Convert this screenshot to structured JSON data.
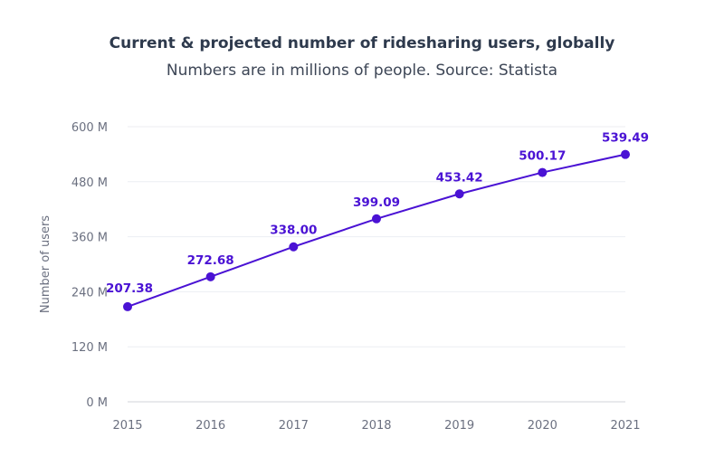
{
  "chart_data": {
    "type": "line",
    "title": "Current & projected number of ridesharing users, globally",
    "subtitle": "Numbers are in millions of people. Source: Statista",
    "xlabel": "",
    "ylabel": "Number of users",
    "x": [
      "2015",
      "2016",
      "2017",
      "2018",
      "2019",
      "2020",
      "2021"
    ],
    "values": [
      207.38,
      272.68,
      338.0,
      399.09,
      453.42,
      500.17,
      539.49
    ],
    "data_labels": [
      "207.38",
      "272.68",
      "338.00",
      "399.09",
      "453.42",
      "500.17",
      "539.49"
    ],
    "yticks": [
      0,
      120,
      240,
      360,
      480,
      600
    ],
    "ytick_labels": [
      "0 M",
      "120 M",
      "240 M",
      "360 M",
      "480 M",
      "600 M"
    ],
    "ylim": [
      0,
      600
    ],
    "grid": "horizontal",
    "line_color": "#4a12d4"
  }
}
